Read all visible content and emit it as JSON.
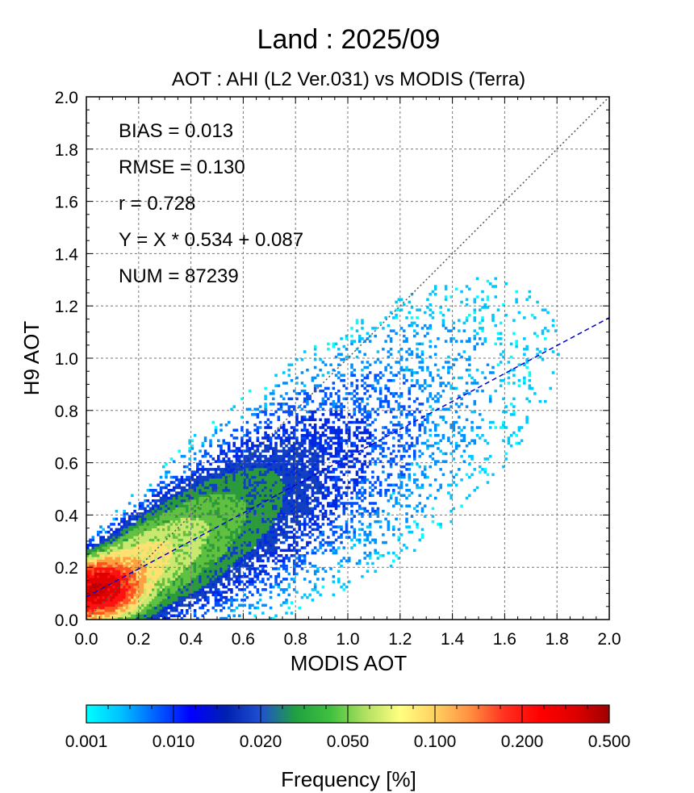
{
  "chart_data": {
    "type": "scatter",
    "title": "Land  :  2025/09",
    "subtitle": "AOT : AHI (L2 Ver.031) vs MODIS (Terra)",
    "xlabel": "MODIS AOT",
    "ylabel": "H9 AOT",
    "xlim": [
      0.0,
      2.0
    ],
    "ylim": [
      0.0,
      2.0
    ],
    "xticks": [
      "0.0",
      "0.2",
      "0.4",
      "0.6",
      "0.8",
      "1.0",
      "1.2",
      "1.4",
      "1.6",
      "1.8",
      "2.0"
    ],
    "yticks": [
      "0.0",
      "0.2",
      "0.4",
      "0.6",
      "0.8",
      "1.0",
      "1.2",
      "1.4",
      "1.6",
      "1.8",
      "2.0"
    ],
    "grid": true,
    "stats": {
      "bias": "BIAS = 0.013",
      "rmse": "RMSE = 0.130",
      "r": "r = 0.728",
      "fit": "Y = X * 0.534 + 0.087",
      "num": "NUM = 87239"
    },
    "reference_lines": [
      {
        "kind": "one-to-one",
        "slope": 1.0,
        "intercept": 0.0,
        "color": "#555555",
        "style": "dotted"
      },
      {
        "kind": "regression",
        "slope": 0.534,
        "intercept": 0.087,
        "color": "#0000cc",
        "style": "dashed"
      }
    ],
    "density": {
      "mode_x": 0.05,
      "mode_y": 0.12,
      "point_count": 87239
    },
    "colorbar": {
      "label": "Frequency [%]",
      "ticks": [
        "0.001",
        "0.010",
        "0.020",
        "0.050",
        "0.100",
        "0.200",
        "0.500"
      ],
      "colors": [
        "#00ffff",
        "#00c0ff",
        "#0060ff",
        "#0000ff",
        "#0020b0",
        "#2050d0",
        "#20a040",
        "#40c040",
        "#b0e060",
        "#ffff80",
        "#ffd060",
        "#ff9040",
        "#ff3020",
        "#ff0000",
        "#e00000",
        "#a00000"
      ]
    }
  }
}
